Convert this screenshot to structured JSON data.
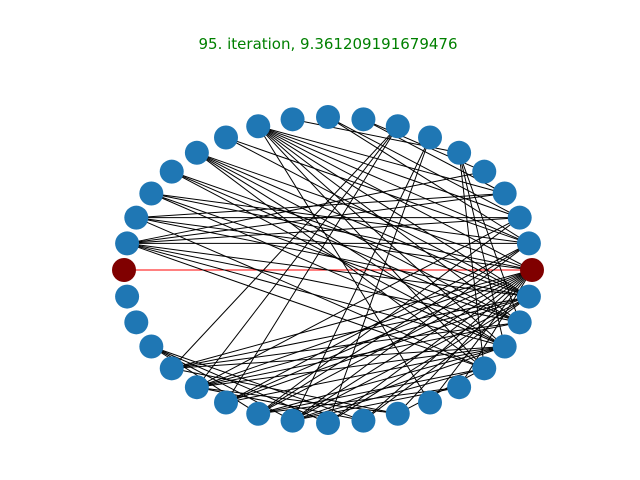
{
  "title": "95. iteration, 9.361209191679476",
  "colors": {
    "title": "#008000",
    "node": "#1f77b4",
    "highlight_node": "#800000",
    "edge": "#000000",
    "highlight_edge": "#ff0000",
    "background": "#ffffff"
  },
  "graph": {
    "layout": "circular",
    "node_count": 36,
    "highlight_nodes": [
      0,
      18
    ],
    "highlight_edge": [
      0,
      18
    ],
    "edges": [
      [
        0,
        18
      ],
      [
        1,
        14
      ],
      [
        1,
        15
      ],
      [
        1,
        16
      ],
      [
        1,
        17
      ],
      [
        1,
        19
      ],
      [
        1,
        20
      ],
      [
        1,
        21
      ],
      [
        1,
        22
      ],
      [
        2,
        15
      ],
      [
        2,
        16
      ],
      [
        2,
        18
      ],
      [
        2,
        19
      ],
      [
        2,
        22
      ],
      [
        3,
        17
      ],
      [
        3,
        18
      ],
      [
        3,
        20
      ],
      [
        3,
        21
      ],
      [
        4,
        19
      ],
      [
        4,
        20
      ],
      [
        4,
        21
      ],
      [
        5,
        18
      ],
      [
        5,
        19
      ],
      [
        5,
        20
      ],
      [
        5,
        21
      ],
      [
        5,
        22
      ],
      [
        6,
        17
      ],
      [
        6,
        19
      ],
      [
        7,
        15
      ],
      [
        7,
        16
      ],
      [
        7,
        17
      ],
      [
        7,
        18
      ],
      [
        7,
        19
      ],
      [
        7,
        20
      ],
      [
        7,
        21
      ],
      [
        7,
        22
      ],
      [
        7,
        24
      ],
      [
        8,
        13
      ],
      [
        9,
        16
      ],
      [
        9,
        17
      ],
      [
        10,
        14
      ],
      [
        10,
        15
      ],
      [
        11,
        30
      ],
      [
        11,
        31
      ],
      [
        11,
        32
      ],
      [
        12,
        27
      ],
      [
        12,
        28
      ],
      [
        13,
        20
      ],
      [
        13,
        21
      ],
      [
        13,
        22
      ],
      [
        16,
        29
      ],
      [
        16,
        31
      ],
      [
        17,
        28
      ],
      [
        17,
        29
      ],
      [
        17,
        30
      ],
      [
        18,
        23
      ],
      [
        18,
        24
      ],
      [
        18,
        25
      ],
      [
        18,
        26
      ],
      [
        18,
        27
      ],
      [
        18,
        28
      ],
      [
        18,
        29
      ],
      [
        18,
        30
      ],
      [
        18,
        31
      ],
      [
        18,
        32
      ],
      [
        19,
        26
      ],
      [
        19,
        27
      ],
      [
        19,
        28
      ],
      [
        19,
        30
      ],
      [
        19,
        31
      ],
      [
        19,
        32
      ],
      [
        20,
        31
      ],
      [
        20,
        32
      ],
      [
        21,
        28
      ],
      [
        21,
        29
      ],
      [
        21,
        30
      ],
      [
        21,
        31
      ],
      [
        21,
        32
      ],
      [
        22,
        25
      ],
      [
        22,
        28
      ],
      [
        22,
        29
      ],
      [
        23,
        28
      ],
      [
        23,
        29
      ],
      [
        25,
        31
      ],
      [
        25,
        32
      ],
      [
        26,
        31
      ],
      [
        26,
        33
      ],
      [
        27,
        33
      ],
      [
        28,
        33
      ],
      [
        29,
        33
      ]
    ]
  }
}
